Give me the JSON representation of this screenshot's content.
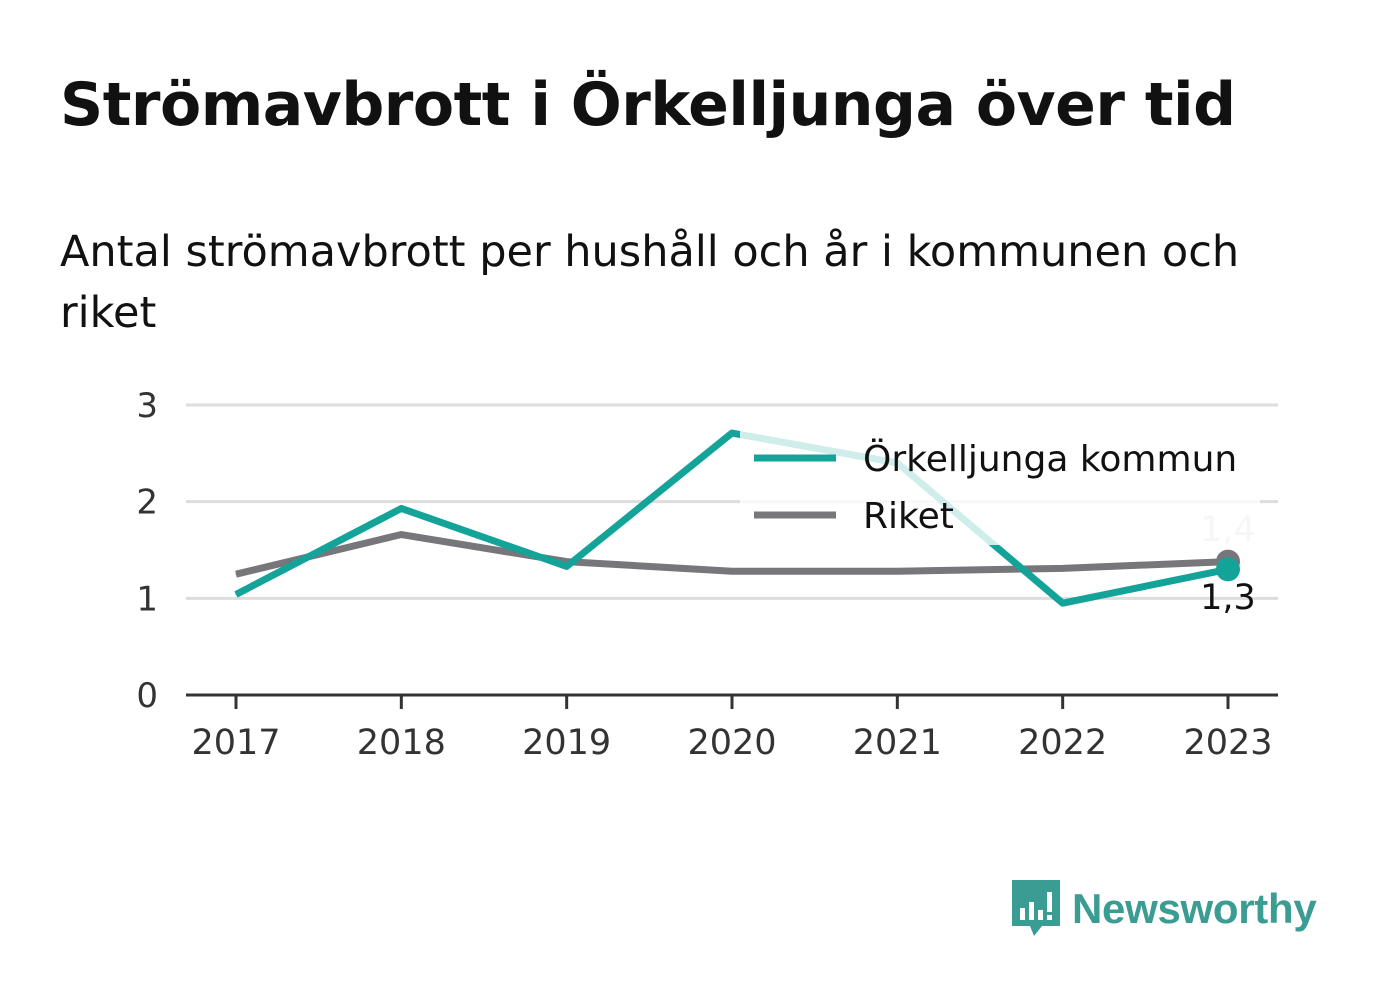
{
  "title": "Strömavbrott i Örkelljunga över tid",
  "subtitle": "Antal strömavbrott per hushåll och år i kommunen och riket",
  "brand": {
    "name": "Newsworthy",
    "icon": "newsworthy-logo-icon",
    "color": "#3a9c92"
  },
  "chart_data": {
    "type": "line",
    "categories": [
      "2017",
      "2018",
      "2019",
      "2020",
      "2021",
      "2022",
      "2023"
    ],
    "series": [
      {
        "name": "Örkelljunga kommun",
        "color": "#13a399",
        "values": [
          1.04,
          1.93,
          1.33,
          2.71,
          2.4,
          0.95,
          1.3
        ],
        "end_label": "1,3"
      },
      {
        "name": "Riket",
        "color": "#77767b",
        "values": [
          1.25,
          1.66,
          1.38,
          1.28,
          1.28,
          1.31,
          1.38
        ],
        "end_label": "1,4"
      }
    ],
    "ylim": [
      0,
      3
    ],
    "yticks": [
      "0",
      "1",
      "2",
      "3"
    ],
    "xlabel": "",
    "ylabel": "",
    "grid": true,
    "legend_position": "top-right"
  }
}
